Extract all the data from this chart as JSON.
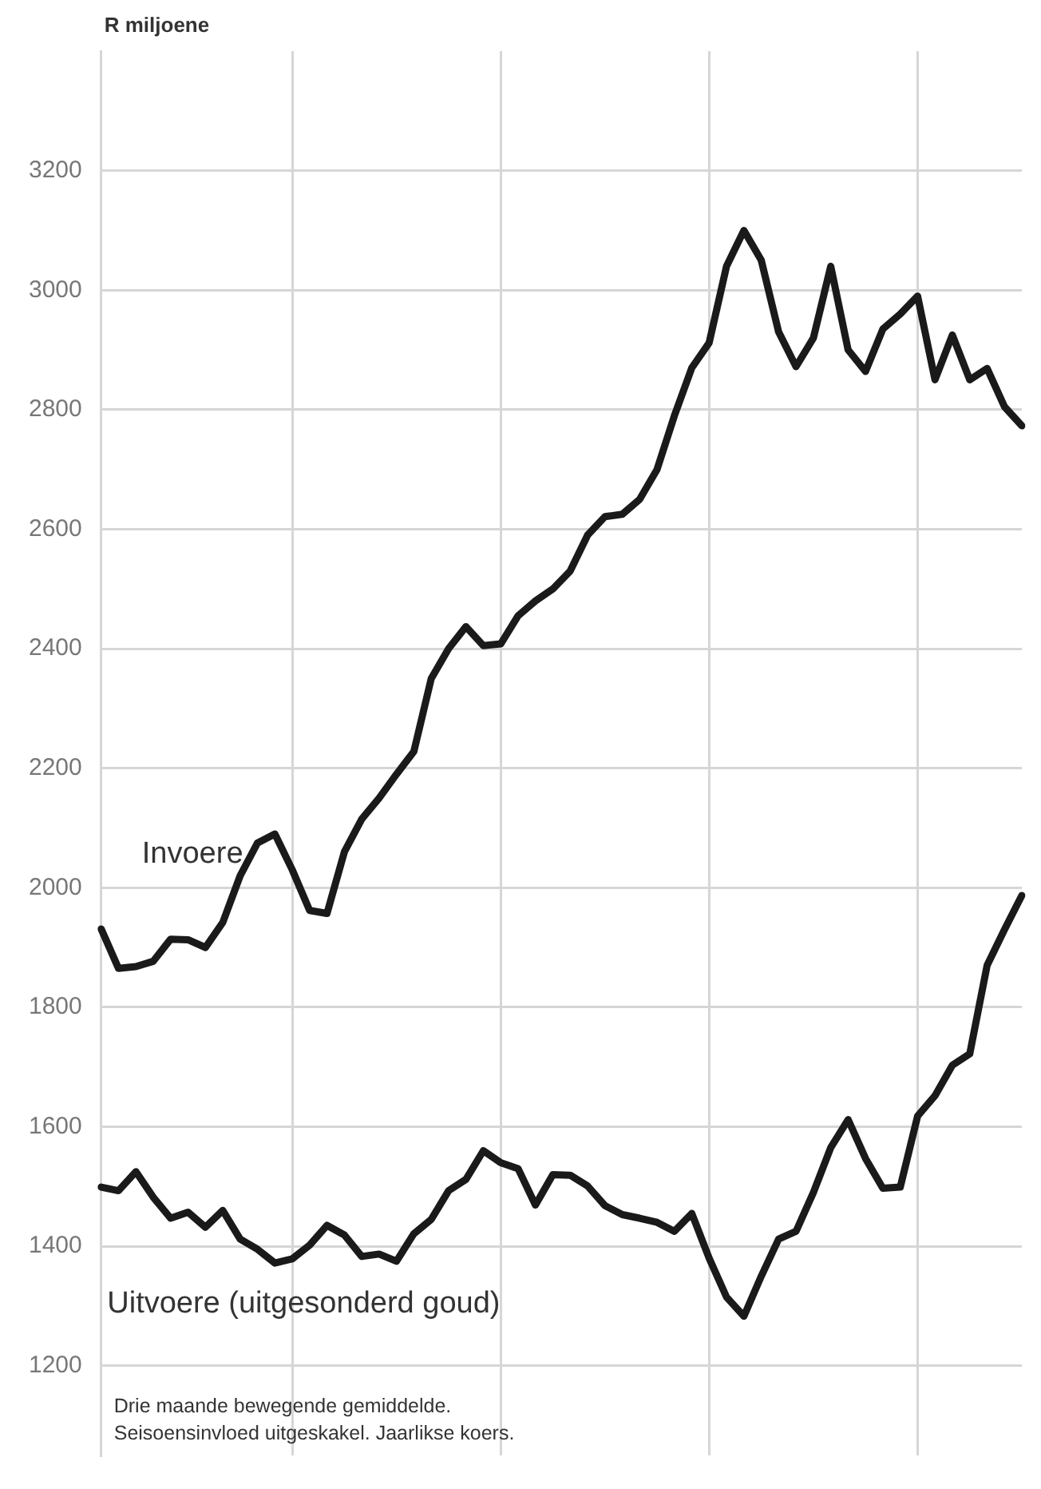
{
  "chart_data": {
    "type": "line",
    "ylabel": "R miljoene",
    "categories": [
      null,
      null,
      null,
      null,
      null,
      null,
      null,
      null,
      null,
      null,
      null,
      null,
      null,
      null,
      null,
      null,
      null,
      null,
      null,
      null,
      null,
      null,
      null,
      null,
      null,
      null,
      null,
      null,
      null,
      null,
      null,
      null,
      null,
      null,
      null,
      null,
      null,
      null,
      null,
      null,
      null,
      null,
      null,
      null,
      null,
      null,
      null,
      null,
      null,
      null,
      null,
      null,
      null,
      null
    ],
    "series": [
      {
        "name": "Invoere",
        "color": "#1a1a1a",
        "values": [
          1931,
          1865,
          1868,
          1877,
          1914,
          1913,
          1900,
          1942,
          2020,
          2075,
          2090,
          2030,
          1962,
          1957,
          2060,
          2115,
          2150,
          2190,
          2228,
          2350,
          2400,
          2437,
          2405,
          2408,
          2455,
          2480,
          2500,
          2530,
          2590,
          2621,
          2625,
          2650,
          2700,
          2790,
          2870,
          2912,
          3040,
          3100,
          3050,
          2930,
          2872,
          2920,
          3040,
          2900,
          2864,
          2935,
          2960,
          2990,
          2850,
          2925,
          2850,
          2869,
          2805,
          2773
        ]
      },
      {
        "name": "Uitvoere (uitgesonderd goud)",
        "color": "#1a1a1a",
        "values": [
          1499,
          1493,
          1525,
          1482,
          1447,
          1457,
          1432,
          1460,
          1412,
          1395,
          1372,
          1379,
          1402,
          1435,
          1419,
          1383,
          1387,
          1375,
          1421,
          1445,
          1493,
          1512,
          1560,
          1540,
          1530,
          1469,
          1520,
          1519,
          1501,
          1468,
          1453,
          1447,
          1440,
          1425,
          1455,
          1380,
          1315,
          1283,
          1350,
          1412,
          1425,
          1490,
          1565,
          1612,
          1547,
          1497,
          1499,
          1618,
          1652,
          1703,
          1722,
          1870,
          1930,
          1987
        ]
      }
    ],
    "ylim": [
      1050,
      3400
    ],
    "yticks": [
      1200,
      1400,
      1600,
      1800,
      2000,
      2200,
      2400,
      2600,
      2800,
      3000,
      3200
    ],
    "grid": true,
    "legend": false,
    "marker": "none",
    "line_style": "solid",
    "tick_labels": "y",
    "annotations": [
      "Drie maande bewegende gemiddelde.",
      "Seisoensinvloed uitgeskakel. Jaarlikse koers."
    ]
  }
}
